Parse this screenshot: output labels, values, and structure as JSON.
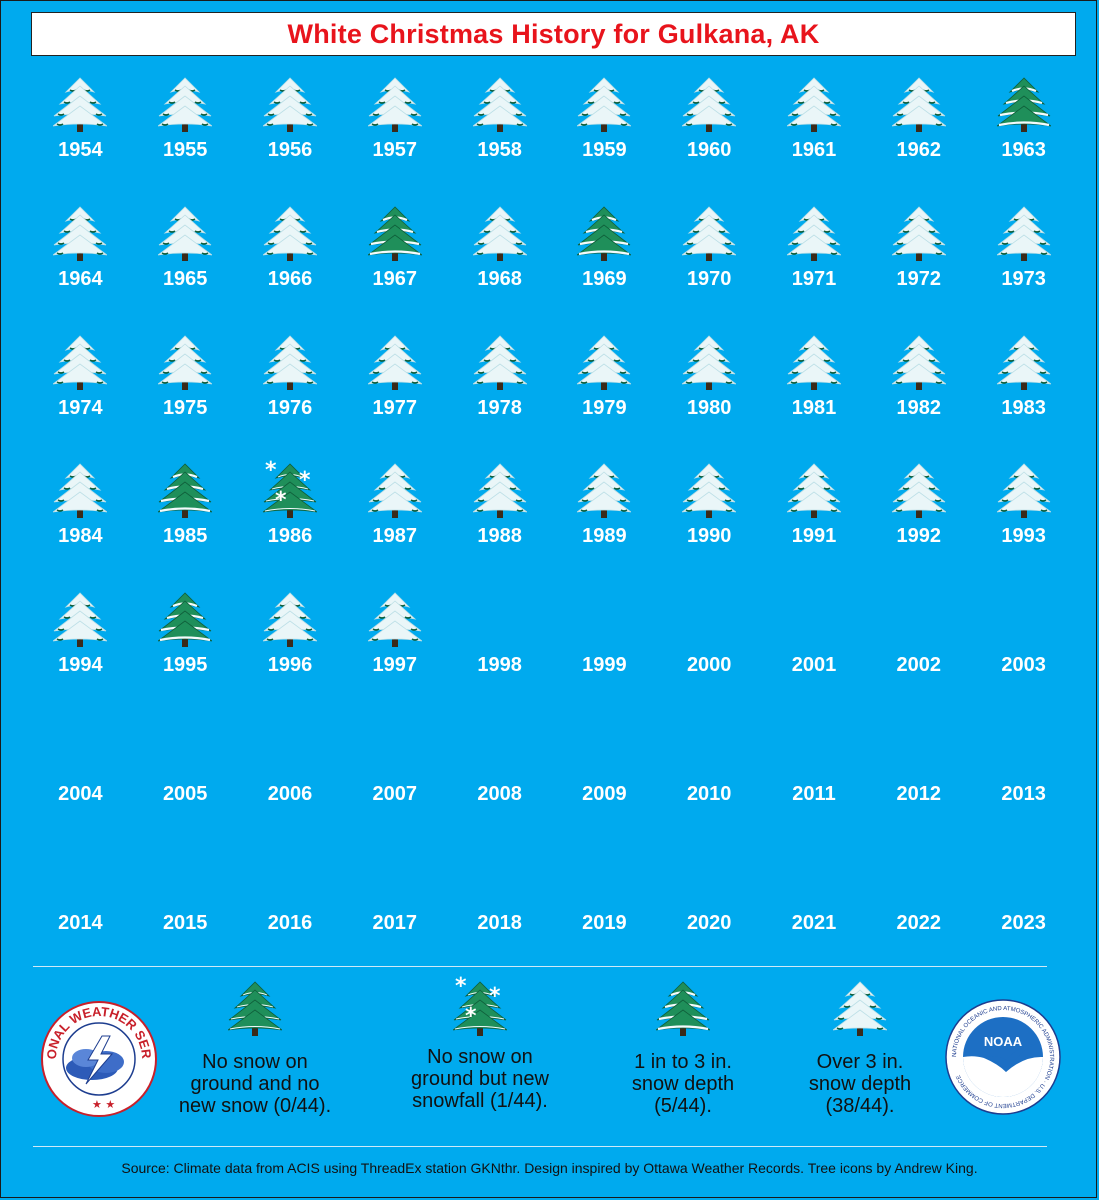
{
  "title": "White Christmas History for Gulkana, AK",
  "colors": {
    "background": "#00aaee",
    "title": "#e8141c"
  },
  "years": [
    {
      "year": "1954",
      "icon": "over-3in"
    },
    {
      "year": "1955",
      "icon": "over-3in"
    },
    {
      "year": "1956",
      "icon": "over-3in"
    },
    {
      "year": "1957",
      "icon": "over-3in"
    },
    {
      "year": "1958",
      "icon": "over-3in"
    },
    {
      "year": "1959",
      "icon": "over-3in"
    },
    {
      "year": "1960",
      "icon": "over-3in"
    },
    {
      "year": "1961",
      "icon": "over-3in"
    },
    {
      "year": "1962",
      "icon": "over-3in"
    },
    {
      "year": "1963",
      "icon": "1-3in"
    },
    {
      "year": "1964",
      "icon": "over-3in"
    },
    {
      "year": "1965",
      "icon": "over-3in"
    },
    {
      "year": "1966",
      "icon": "over-3in"
    },
    {
      "year": "1967",
      "icon": "1-3in"
    },
    {
      "year": "1968",
      "icon": "over-3in"
    },
    {
      "year": "1969",
      "icon": "1-3in"
    },
    {
      "year": "1970",
      "icon": "over-3in"
    },
    {
      "year": "1971",
      "icon": "over-3in"
    },
    {
      "year": "1972",
      "icon": "over-3in"
    },
    {
      "year": "1973",
      "icon": "over-3in"
    },
    {
      "year": "1974",
      "icon": "over-3in"
    },
    {
      "year": "1975",
      "icon": "over-3in"
    },
    {
      "year": "1976",
      "icon": "over-3in"
    },
    {
      "year": "1977",
      "icon": "over-3in"
    },
    {
      "year": "1978",
      "icon": "over-3in"
    },
    {
      "year": "1979",
      "icon": "over-3in"
    },
    {
      "year": "1980",
      "icon": "over-3in"
    },
    {
      "year": "1981",
      "icon": "over-3in"
    },
    {
      "year": "1982",
      "icon": "over-3in"
    },
    {
      "year": "1983",
      "icon": "over-3in"
    },
    {
      "year": "1984",
      "icon": "over-3in"
    },
    {
      "year": "1985",
      "icon": "1-3in"
    },
    {
      "year": "1986",
      "icon": "new-snowfall"
    },
    {
      "year": "1987",
      "icon": "over-3in"
    },
    {
      "year": "1988",
      "icon": "over-3in"
    },
    {
      "year": "1989",
      "icon": "over-3in"
    },
    {
      "year": "1990",
      "icon": "over-3in"
    },
    {
      "year": "1991",
      "icon": "over-3in"
    },
    {
      "year": "1992",
      "icon": "over-3in"
    },
    {
      "year": "1993",
      "icon": "over-3in"
    },
    {
      "year": "1994",
      "icon": "over-3in"
    },
    {
      "year": "1995",
      "icon": "1-3in"
    },
    {
      "year": "1996",
      "icon": "over-3in"
    },
    {
      "year": "1997",
      "icon": "over-3in"
    },
    {
      "year": "1998",
      "icon": "none"
    },
    {
      "year": "1999",
      "icon": "none"
    },
    {
      "year": "2000",
      "icon": "none"
    },
    {
      "year": "2001",
      "icon": "none"
    },
    {
      "year": "2002",
      "icon": "none"
    },
    {
      "year": "2003",
      "icon": "none"
    },
    {
      "year": "2004",
      "icon": "none"
    },
    {
      "year": "2005",
      "icon": "none"
    },
    {
      "year": "2006",
      "icon": "none"
    },
    {
      "year": "2007",
      "icon": "none"
    },
    {
      "year": "2008",
      "icon": "none"
    },
    {
      "year": "2009",
      "icon": "none"
    },
    {
      "year": "2010",
      "icon": "none"
    },
    {
      "year": "2011",
      "icon": "none"
    },
    {
      "year": "2012",
      "icon": "none"
    },
    {
      "year": "2013",
      "icon": "none"
    },
    {
      "year": "2014",
      "icon": "none"
    },
    {
      "year": "2015",
      "icon": "none"
    },
    {
      "year": "2016",
      "icon": "none"
    },
    {
      "year": "2017",
      "icon": "none"
    },
    {
      "year": "2018",
      "icon": "none"
    },
    {
      "year": "2019",
      "icon": "none"
    },
    {
      "year": "2020",
      "icon": "none"
    },
    {
      "year": "2021",
      "icon": "none"
    },
    {
      "year": "2022",
      "icon": "none"
    },
    {
      "year": "2023",
      "icon": "none"
    }
  ],
  "legend": [
    {
      "icon": "no-snow",
      "label": "No snow on\nground and no\nnew snow (0/44)."
    },
    {
      "icon": "new-snowfall",
      "label": "No snow on\nground but new\nsnowfall (1/44)."
    },
    {
      "icon": "1-3in",
      "label": "1 in to 3 in.\nsnow depth\n(5/44)."
    },
    {
      "icon": "over-3in",
      "label": "Over 3 in.\nsnow depth\n(38/44)."
    }
  ],
  "logos": {
    "nws_text": "NATIONAL WEATHER SERVICE",
    "noaa_text": "NOAA",
    "noaa_ring_text": "NATIONAL OCEANIC AND ATMOSPHERIC ADMINISTRATION · U.S. DEPARTMENT OF COMMERCE"
  },
  "source": "Source: Climate data from ACIS using ThreadEx station GKNthr. Design inspired by Ottawa Weather Records. Tree icons by Andrew King."
}
